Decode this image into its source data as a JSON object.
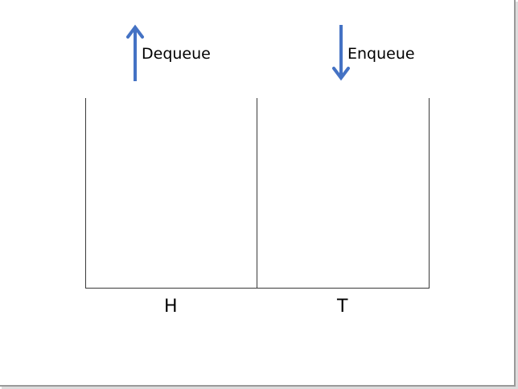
{
  "operations": {
    "dequeue": {
      "label": "Dequeue",
      "direction": "up"
    },
    "enqueue": {
      "label": "Enqueue",
      "direction": "down"
    }
  },
  "slots": [
    {
      "label": "H"
    },
    {
      "label": "T"
    }
  ],
  "colors": {
    "arrow": "#4472c4",
    "line": "#3a3a3a",
    "background": "#ffffff"
  }
}
